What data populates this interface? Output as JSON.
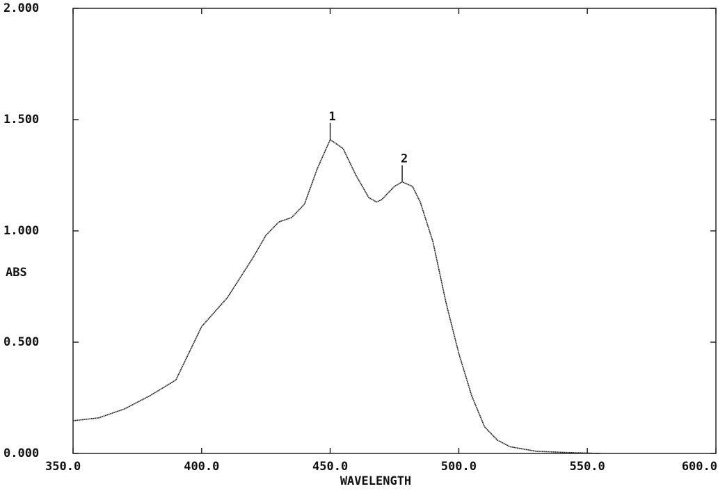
{
  "chart_data": {
    "type": "line",
    "x_label": "WAVELENGTH",
    "y_label": "ABS",
    "x": [
      350,
      360,
      370,
      380,
      390,
      400,
      410,
      420,
      425,
      430,
      435,
      440,
      445,
      450,
      455,
      460,
      465,
      468,
      470,
      475,
      478,
      482,
      485,
      490,
      495,
      500,
      505,
      510,
      515,
      520,
      530,
      540,
      555
    ],
    "series": [
      {
        "color": "#222222",
        "values": [
          0.147,
          0.16,
          0.2,
          0.26,
          0.33,
          0.57,
          0.7,
          0.88,
          0.98,
          1.04,
          1.06,
          1.12,
          1.28,
          1.41,
          1.37,
          1.25,
          1.15,
          1.13,
          1.14,
          1.2,
          1.22,
          1.2,
          1.13,
          0.95,
          0.68,
          0.45,
          0.26,
          0.12,
          0.06,
          0.03,
          0.01,
          0.005,
          0.0
        ]
      }
    ],
    "annotations": [
      {
        "text": "1",
        "x": 450,
        "y": 1.41
      },
      {
        "text": "2",
        "x": 478,
        "y": 1.22
      }
    ],
    "xlim": [
      350,
      600
    ],
    "ylim": [
      0,
      2
    ],
    "xticks": [
      {
        "value": 350,
        "label": "350.0"
      },
      {
        "value": 400,
        "label": "400.0"
      },
      {
        "value": 450,
        "label": "450.0"
      },
      {
        "value": 500,
        "label": "500.0"
      },
      {
        "value": 550,
        "label": "550.0"
      },
      {
        "value": 600,
        "label": "600.0"
      }
    ],
    "yticks": [
      {
        "value": 0,
        "label": "0.000"
      },
      {
        "value": 0.5,
        "label": "0.500"
      },
      {
        "value": 1,
        "label": "1.000"
      },
      {
        "value": 1.5,
        "label": "1.500"
      },
      {
        "value": 2,
        "label": "2.000"
      }
    ]
  }
}
